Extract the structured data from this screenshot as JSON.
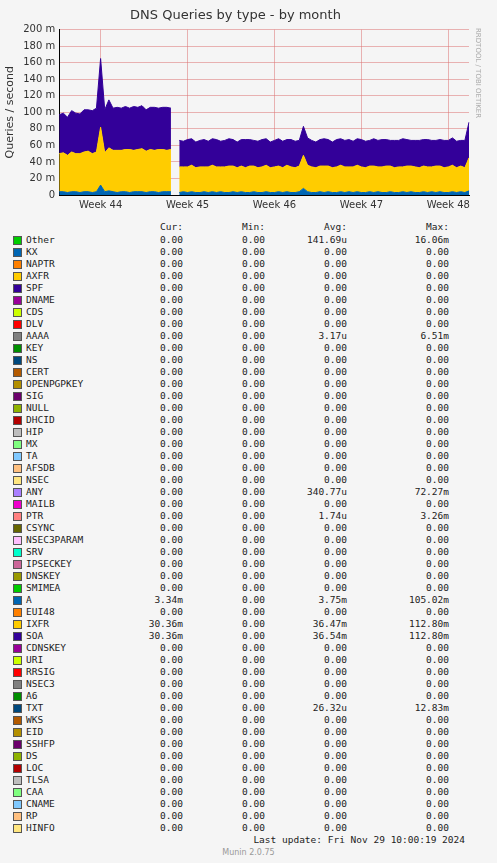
{
  "chart_data": {
    "type": "area",
    "title": "DNS Queries by type - by month",
    "y_label": "Queries / second",
    "categories": [
      null,
      null,
      null,
      null,
      null,
      null,
      null,
      null,
      null,
      null,
      "Week 44",
      null,
      null,
      null,
      null,
      null,
      null,
      null,
      null,
      null,
      null,
      null,
      null,
      null,
      null,
      null,
      null,
      null,
      null,
      null,
      null,
      "Week 45",
      null,
      null,
      null,
      null,
      null,
      null,
      null,
      null,
      null,
      null,
      null,
      null,
      null,
      null,
      null,
      null,
      null,
      null,
      null,
      null,
      "Week 46",
      null,
      null,
      null,
      null,
      null,
      null,
      null,
      null,
      null,
      null,
      null,
      null,
      null,
      null,
      null,
      null,
      null,
      null,
      null,
      null,
      "Week 47",
      null,
      null,
      null,
      null,
      null,
      null,
      null,
      null,
      null,
      null,
      null,
      null,
      null,
      null,
      null,
      null,
      null,
      null,
      null,
      null,
      "Week 48",
      null,
      null,
      null,
      null,
      null
    ],
    "series": [
      {
        "name": "A",
        "color": "#0066b3",
        "values": [
          0.004,
          0.004,
          0.003,
          0.004,
          0.004,
          0.003,
          0.004,
          0.004,
          0.003,
          0.004,
          0.012,
          0.004,
          0.005,
          0.004,
          0.003,
          0.004,
          0.004,
          0.003,
          0.004,
          0.004,
          0.004,
          0.003,
          0.004,
          0.004,
          0.003,
          0.004,
          0.004,
          0.004,
          null,
          0.003,
          0.004,
          0.003,
          0.004,
          0.003,
          0.003,
          0.004,
          0.003,
          0.004,
          0.003,
          0.004,
          0.003,
          0.003,
          0.004,
          0.003,
          0.004,
          0.003,
          0.003,
          0.004,
          0.003,
          0.003,
          0.004,
          0.003,
          0.003,
          0.004,
          0.003,
          0.004,
          0.003,
          0.003,
          0.004,
          0.008,
          0.004,
          0.003,
          0.003,
          0.004,
          0.003,
          0.004,
          0.003,
          0.003,
          0.004,
          0.003,
          0.004,
          0.003,
          0.004,
          0.003,
          0.003,
          0.004,
          0.003,
          0.004,
          0.003,
          0.003,
          0.004,
          0.003,
          0.003,
          0.004,
          0.003,
          0.004,
          0.003,
          0.003,
          0.004,
          0.003,
          0.004,
          0.003,
          0.004,
          0.003,
          0.003,
          0.004,
          0.003,
          0.004,
          0.003,
          0.005
        ]
      },
      {
        "name": "IXFR",
        "color": "#ffcc00",
        "values": [
          0.046,
          0.047,
          0.045,
          0.048,
          0.046,
          0.047,
          0.048,
          0.049,
          0.047,
          0.048,
          0.07,
          0.047,
          0.052,
          0.05,
          0.051,
          0.05,
          0.051,
          0.052,
          0.05,
          0.051,
          0.052,
          0.05,
          0.051,
          0.05,
          0.052,
          0.051,
          0.05,
          0.051,
          null,
          0.031,
          0.03,
          0.031,
          0.032,
          0.03,
          0.031,
          0.03,
          0.031,
          0.032,
          0.031,
          0.03,
          0.031,
          0.032,
          0.031,
          0.03,
          0.031,
          0.03,
          0.032,
          0.031,
          0.03,
          0.031,
          0.032,
          0.03,
          0.031,
          0.031,
          0.03,
          0.032,
          0.031,
          0.03,
          0.031,
          0.04,
          0.032,
          0.031,
          0.03,
          0.031,
          0.032,
          0.031,
          0.03,
          0.031,
          0.032,
          0.031,
          0.03,
          0.031,
          0.032,
          0.031,
          0.03,
          0.031,
          0.032,
          0.03,
          0.031,
          0.032,
          0.031,
          0.03,
          0.031,
          0.03,
          0.032,
          0.031,
          0.031,
          0.03,
          0.031,
          0.031,
          0.03,
          0.032,
          0.031,
          0.03,
          0.031,
          0.032,
          0.03,
          0.031,
          0.03,
          0.04
        ]
      },
      {
        "name": "SOA",
        "color": "#330099",
        "values": [
          0.047,
          0.048,
          0.046,
          0.05,
          0.049,
          0.048,
          0.051,
          0.05,
          0.052,
          0.053,
          0.083,
          0.052,
          0.058,
          0.051,
          0.052,
          0.051,
          0.052,
          0.05,
          0.053,
          0.051,
          0.052,
          0.05,
          0.051,
          0.052,
          0.05,
          0.051,
          0.052,
          0.05,
          null,
          0.032,
          0.031,
          0.033,
          0.032,
          0.031,
          0.032,
          0.033,
          0.031,
          0.032,
          0.033,
          0.031,
          0.032,
          0.033,
          0.032,
          0.031,
          0.032,
          0.034,
          0.032,
          0.031,
          0.032,
          0.033,
          0.032,
          0.031,
          0.032,
          0.033,
          0.032,
          0.031,
          0.033,
          0.032,
          0.031,
          0.035,
          0.033,
          0.032,
          0.031,
          0.032,
          0.033,
          0.032,
          0.031,
          0.033,
          0.032,
          0.032,
          0.033,
          0.031,
          0.032,
          0.033,
          0.032,
          0.031,
          0.033,
          0.032,
          0.033,
          0.032,
          0.031,
          0.033,
          0.032,
          0.034,
          0.032,
          0.031,
          0.032,
          0.033,
          0.032,
          0.033,
          0.032,
          0.031,
          0.032,
          0.033,
          0.032,
          0.033,
          0.032,
          0.031,
          0.033,
          0.043
        ]
      }
    ],
    "ylim": [
      0,
      0.2
    ],
    "yticks": [
      0,
      {
        "value": 0.02,
        "label": "20 m"
      },
      {
        "value": 0.04,
        "label": "40 m"
      },
      {
        "value": 0.06,
        "label": "60 m"
      },
      {
        "value": 0.08,
        "label": "80 m"
      },
      {
        "value": 0.1,
        "label": "100 m"
      },
      {
        "value": 0.12,
        "label": "120 m"
      },
      {
        "value": 0.14,
        "label": "140 m"
      },
      {
        "value": 0.16,
        "label": "160 m"
      },
      {
        "value": 0.18,
        "label": "180 m"
      },
      {
        "value": 0.2,
        "label": "200 m"
      }
    ],
    "grid": true,
    "stacked": true
  },
  "watermark": "RRDTOOL / TOBI OETIKER",
  "legend_table": {
    "header": [
      "Cur:",
      "Min:",
      "Avg:",
      "Max:"
    ],
    "rows": [
      {
        "name": "Other",
        "color": "#00cc00",
        "cur": "0.00",
        "min": "0.00",
        "avg": "141.69u",
        "max": "16.06m"
      },
      {
        "name": "KX",
        "color": "#0066b3",
        "cur": "0.00",
        "min": "0.00",
        "avg": "0.00",
        "max": "0.00"
      },
      {
        "name": "NAPTR",
        "color": "#ff8000",
        "cur": "0.00",
        "min": "0.00",
        "avg": "0.00",
        "max": "0.00"
      },
      {
        "name": "AXFR",
        "color": "#ffcc00",
        "cur": "0.00",
        "min": "0.00",
        "avg": "0.00",
        "max": "0.00"
      },
      {
        "name": "SPF",
        "color": "#330099",
        "cur": "0.00",
        "min": "0.00",
        "avg": "0.00",
        "max": "0.00"
      },
      {
        "name": "DNAME",
        "color": "#990099",
        "cur": "0.00",
        "min": "0.00",
        "avg": "0.00",
        "max": "0.00"
      },
      {
        "name": "CDS",
        "color": "#ccff00",
        "cur": "0.00",
        "min": "0.00",
        "avg": "0.00",
        "max": "0.00"
      },
      {
        "name": "DLV",
        "color": "#ff0000",
        "cur": "0.00",
        "min": "0.00",
        "avg": "0.00",
        "max": "0.00"
      },
      {
        "name": "AAAA",
        "color": "#808080",
        "cur": "0.00",
        "min": "0.00",
        "avg": "3.17u",
        "max": "6.51m"
      },
      {
        "name": "KEY",
        "color": "#008f00",
        "cur": "0.00",
        "min": "0.00",
        "avg": "0.00",
        "max": "0.00"
      },
      {
        "name": "NS",
        "color": "#00487d",
        "cur": "0.00",
        "min": "0.00",
        "avg": "0.00",
        "max": "0.00"
      },
      {
        "name": "CERT",
        "color": "#b35a00",
        "cur": "0.00",
        "min": "0.00",
        "avg": "0.00",
        "max": "0.00"
      },
      {
        "name": "OPENPGPKEY",
        "color": "#b38f00",
        "cur": "0.00",
        "min": "0.00",
        "avg": "0.00",
        "max": "0.00"
      },
      {
        "name": "SIG",
        "color": "#6b006b",
        "cur": "0.00",
        "min": "0.00",
        "avg": "0.00",
        "max": "0.00"
      },
      {
        "name": "NULL",
        "color": "#8fb300",
        "cur": "0.00",
        "min": "0.00",
        "avg": "0.00",
        "max": "0.00"
      },
      {
        "name": "DHCID",
        "color": "#b30000",
        "cur": "0.00",
        "min": "0.00",
        "avg": "0.00",
        "max": "0.00"
      },
      {
        "name": "HIP",
        "color": "#bebebe",
        "cur": "0.00",
        "min": "0.00",
        "avg": "0.00",
        "max": "0.00"
      },
      {
        "name": "MX",
        "color": "#80ff80",
        "cur": "0.00",
        "min": "0.00",
        "avg": "0.00",
        "max": "0.00"
      },
      {
        "name": "TA",
        "color": "#80c9ff",
        "cur": "0.00",
        "min": "0.00",
        "avg": "0.00",
        "max": "0.00"
      },
      {
        "name": "AFSDB",
        "color": "#ffc080",
        "cur": "0.00",
        "min": "0.00",
        "avg": "0.00",
        "max": "0.00"
      },
      {
        "name": "NSEC",
        "color": "#ffe680",
        "cur": "0.00",
        "min": "0.00",
        "avg": "0.00",
        "max": "0.00"
      },
      {
        "name": "ANY",
        "color": "#aa80ff",
        "cur": "0.00",
        "min": "0.00",
        "avg": "340.77u",
        "max": "72.27m"
      },
      {
        "name": "MAILB",
        "color": "#ee00cc",
        "cur": "0.00",
        "min": "0.00",
        "avg": "0.00",
        "max": "0.00"
      },
      {
        "name": "PTR",
        "color": "#ff8080",
        "cur": "0.00",
        "min": "0.00",
        "avg": "1.74u",
        "max": "3.26m"
      },
      {
        "name": "CSYNC",
        "color": "#666600",
        "cur": "0.00",
        "min": "0.00",
        "avg": "0.00",
        "max": "0.00"
      },
      {
        "name": "NSEC3PARAM",
        "color": "#ffbfff",
        "cur": "0.00",
        "min": "0.00",
        "avg": "0.00",
        "max": "0.00"
      },
      {
        "name": "SRV",
        "color": "#00ffcc",
        "cur": "0.00",
        "min": "0.00",
        "avg": "0.00",
        "max": "0.00"
      },
      {
        "name": "IPSECKEY",
        "color": "#cc6699",
        "cur": "0.00",
        "min": "0.00",
        "avg": "0.00",
        "max": "0.00"
      },
      {
        "name": "DNSKEY",
        "color": "#999900",
        "cur": "0.00",
        "min": "0.00",
        "avg": "0.00",
        "max": "0.00"
      },
      {
        "name": "SMIMEA",
        "color": "#00cc00",
        "cur": "0.00",
        "min": "0.00",
        "avg": "0.00",
        "max": "0.00"
      },
      {
        "name": "A",
        "color": "#0066b3",
        "cur": "3.34m",
        "min": "0.00",
        "avg": "3.75m",
        "max": "105.02m"
      },
      {
        "name": "EUI48",
        "color": "#ff8000",
        "cur": "0.00",
        "min": "0.00",
        "avg": "0.00",
        "max": "0.00"
      },
      {
        "name": "IXFR",
        "color": "#ffcc00",
        "cur": "30.36m",
        "min": "0.00",
        "avg": "36.47m",
        "max": "112.80m"
      },
      {
        "name": "SOA",
        "color": "#330099",
        "cur": "30.36m",
        "min": "0.00",
        "avg": "36.54m",
        "max": "112.80m"
      },
      {
        "name": "CDNSKEY",
        "color": "#990099",
        "cur": "0.00",
        "min": "0.00",
        "avg": "0.00",
        "max": "0.00"
      },
      {
        "name": "URI",
        "color": "#ccff00",
        "cur": "0.00",
        "min": "0.00",
        "avg": "0.00",
        "max": "0.00"
      },
      {
        "name": "RRSIG",
        "color": "#ff0000",
        "cur": "0.00",
        "min": "0.00",
        "avg": "0.00",
        "max": "0.00"
      },
      {
        "name": "NSEC3",
        "color": "#808080",
        "cur": "0.00",
        "min": "0.00",
        "avg": "0.00",
        "max": "0.00"
      },
      {
        "name": "A6",
        "color": "#008f00",
        "cur": "0.00",
        "min": "0.00",
        "avg": "0.00",
        "max": "0.00"
      },
      {
        "name": "TXT",
        "color": "#00487d",
        "cur": "0.00",
        "min": "0.00",
        "avg": "26.32u",
        "max": "12.83m"
      },
      {
        "name": "WKS",
        "color": "#b35a00",
        "cur": "0.00",
        "min": "0.00",
        "avg": "0.00",
        "max": "0.00"
      },
      {
        "name": "EID",
        "color": "#b38f00",
        "cur": "0.00",
        "min": "0.00",
        "avg": "0.00",
        "max": "0.00"
      },
      {
        "name": "SSHFP",
        "color": "#6b006b",
        "cur": "0.00",
        "min": "0.00",
        "avg": "0.00",
        "max": "0.00"
      },
      {
        "name": "DS",
        "color": "#8fb300",
        "cur": "0.00",
        "min": "0.00",
        "avg": "0.00",
        "max": "0.00"
      },
      {
        "name": "LOC",
        "color": "#b30000",
        "cur": "0.00",
        "min": "0.00",
        "avg": "0.00",
        "max": "0.00"
      },
      {
        "name": "TLSA",
        "color": "#bebebe",
        "cur": "0.00",
        "min": "0.00",
        "avg": "0.00",
        "max": "0.00"
      },
      {
        "name": "CAA",
        "color": "#80ff80",
        "cur": "0.00",
        "min": "0.00",
        "avg": "0.00",
        "max": "0.00"
      },
      {
        "name": "CNAME",
        "color": "#80c9ff",
        "cur": "0.00",
        "min": "0.00",
        "avg": "0.00",
        "max": "0.00"
      },
      {
        "name": "RP",
        "color": "#ffc080",
        "cur": "0.00",
        "min": "0.00",
        "avg": "0.00",
        "max": "0.00"
      },
      {
        "name": "HINFO",
        "color": "#ffe680",
        "cur": "0.00",
        "min": "0.00",
        "avg": "0.00",
        "max": "0.00"
      }
    ]
  },
  "footer": {
    "last_update": "Last update: Fri Nov 29 10:00:19 2024",
    "generator": "Munin 2.0.75"
  }
}
